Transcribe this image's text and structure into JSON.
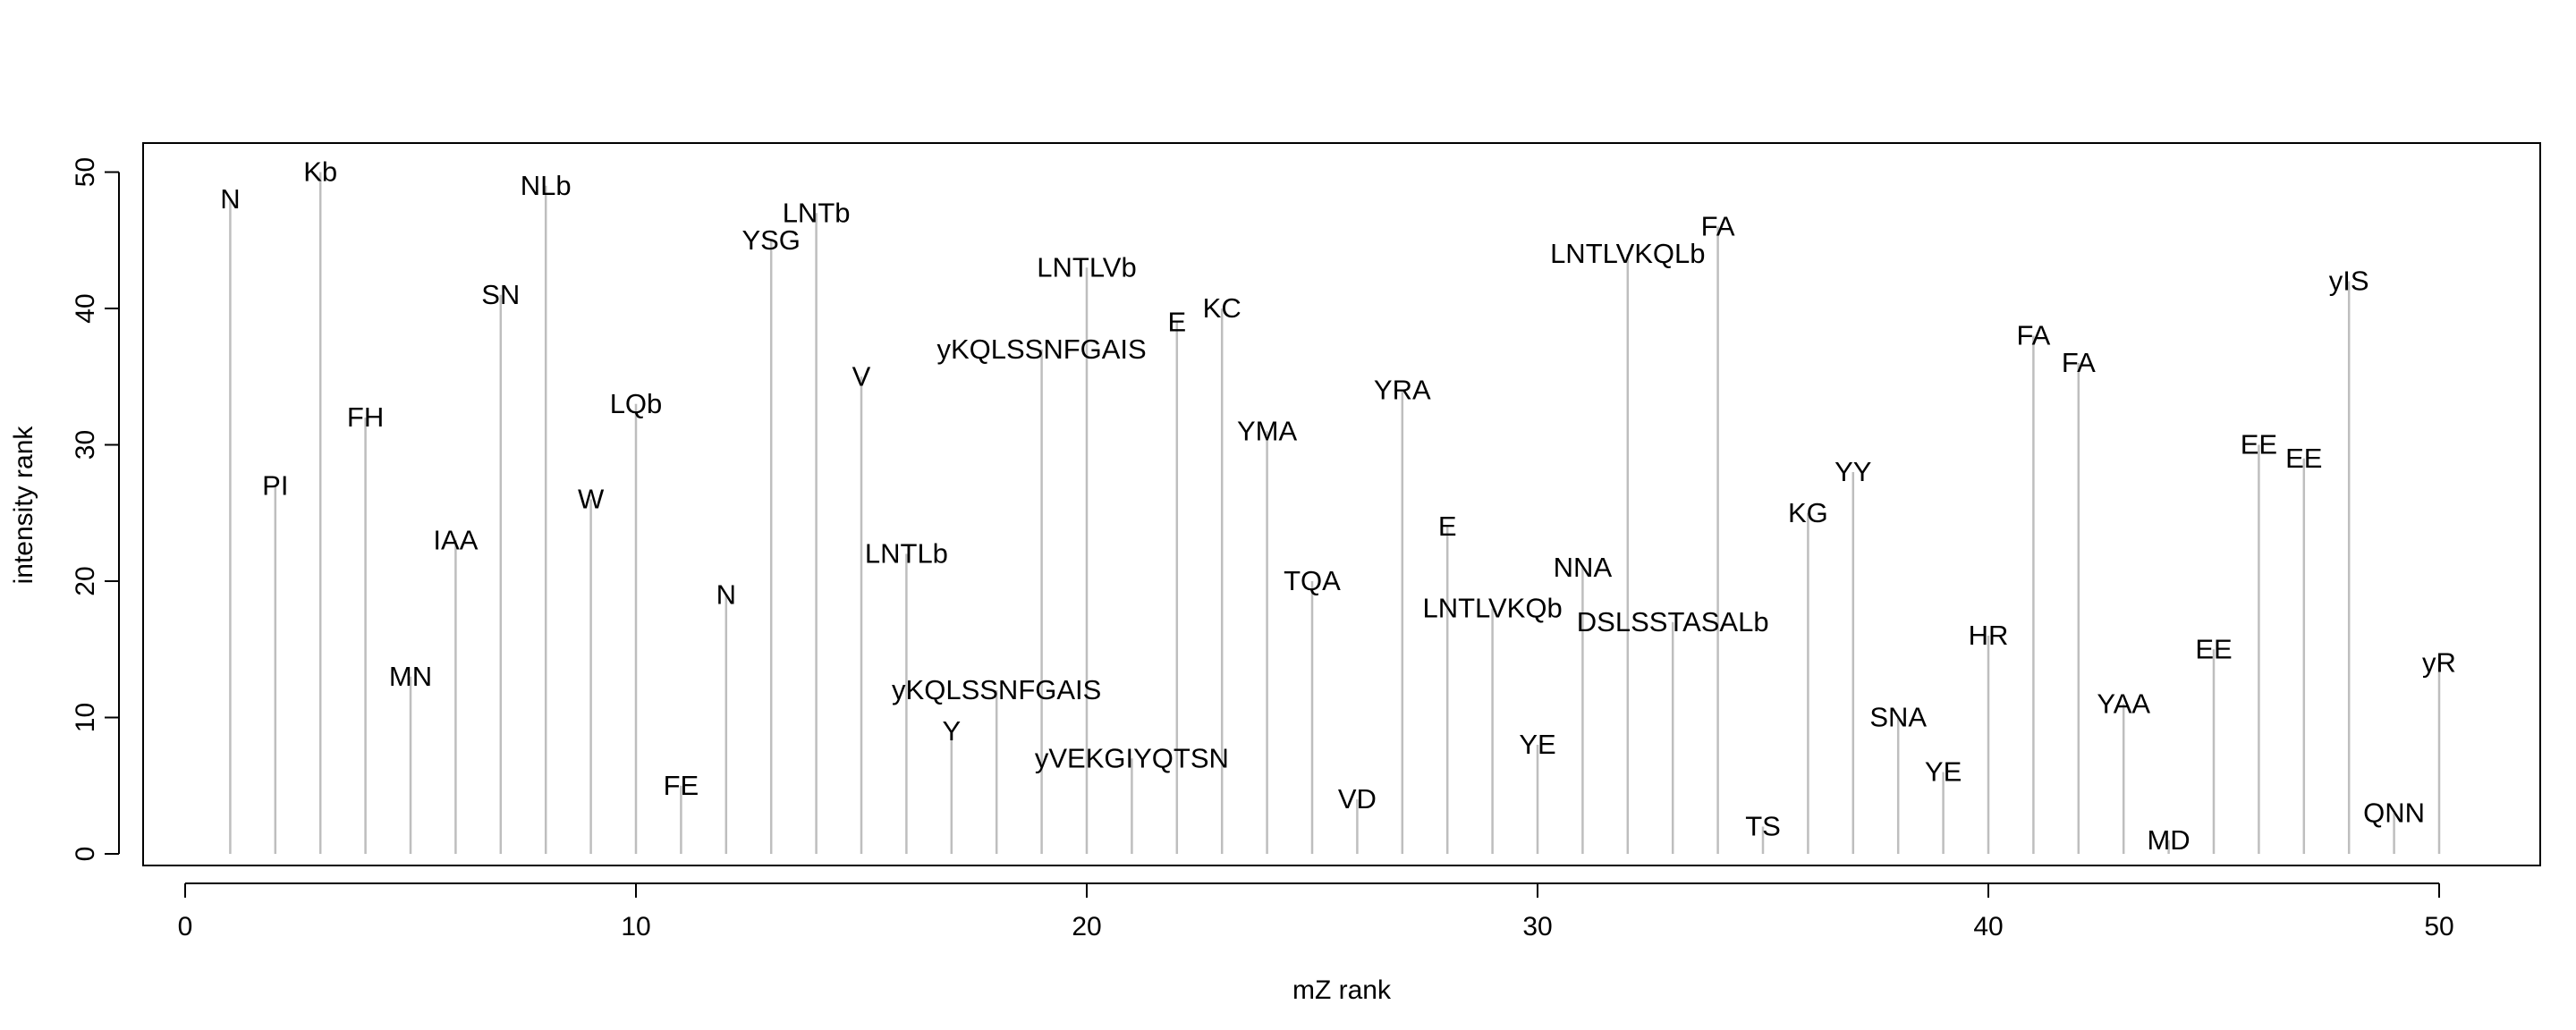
{
  "chart_data": {
    "type": "bar",
    "style": "vertical lines (spikes) with text labels",
    "xlabel": "mZ rank",
    "ylabel": "intensity rank",
    "xlim": [
      0,
      52
    ],
    "ylim": [
      0,
      50
    ],
    "xticks": [
      0,
      10,
      20,
      30,
      40,
      50
    ],
    "yticks": [
      0,
      10,
      20,
      30,
      40,
      50
    ],
    "grid": false,
    "spike_color": "#bebebe",
    "points": [
      {
        "x": 1,
        "y": 48,
        "label": "N"
      },
      {
        "x": 2,
        "y": 27,
        "label": "PI"
      },
      {
        "x": 3,
        "y": 50,
        "label": "Kb"
      },
      {
        "x": 4,
        "y": 32,
        "label": "FH"
      },
      {
        "x": 5,
        "y": 13,
        "label": "MN"
      },
      {
        "x": 6,
        "y": 23,
        "label": "IAA"
      },
      {
        "x": 7,
        "y": 41,
        "label": "SN"
      },
      {
        "x": 8,
        "y": 49,
        "label": "NLb"
      },
      {
        "x": 9,
        "y": 26,
        "label": "W"
      },
      {
        "x": 10,
        "y": 33,
        "label": "LQb"
      },
      {
        "x": 11,
        "y": 5,
        "label": "FE"
      },
      {
        "x": 12,
        "y": 19,
        "label": "N"
      },
      {
        "x": 13,
        "y": 45,
        "label": "YSG"
      },
      {
        "x": 14,
        "y": 47,
        "label": "LNTb"
      },
      {
        "x": 15,
        "y": 35,
        "label": "V"
      },
      {
        "x": 16,
        "y": 22,
        "label": "LNTLb"
      },
      {
        "x": 17,
        "y": 9,
        "label": "Y"
      },
      {
        "x": 18,
        "y": 12,
        "label": "yKQLSSNFGAIS"
      },
      {
        "x": 19,
        "y": 37,
        "label": "yKQLSSNFGAIS"
      },
      {
        "x": 20,
        "y": 43,
        "label": "LNTLVb"
      },
      {
        "x": 21,
        "y": 7,
        "label": "yVEKGIYQTSN"
      },
      {
        "x": 22,
        "y": 39,
        "label": "E"
      },
      {
        "x": 23,
        "y": 40,
        "label": "KC"
      },
      {
        "x": 24,
        "y": 31,
        "label": "YMA"
      },
      {
        "x": 25,
        "y": 20,
        "label": "TQA"
      },
      {
        "x": 26,
        "y": 4,
        "label": "VD"
      },
      {
        "x": 27,
        "y": 34,
        "label": "YRA"
      },
      {
        "x": 28,
        "y": 24,
        "label": "E"
      },
      {
        "x": 29,
        "y": 18,
        "label": "LNTLVKQb"
      },
      {
        "x": 30,
        "y": 8,
        "label": "YE"
      },
      {
        "x": 31,
        "y": 21,
        "label": "NNA"
      },
      {
        "x": 32,
        "y": 44,
        "label": "LNTLVKQLb"
      },
      {
        "x": 33,
        "y": 17,
        "label": "DSLSSTASALb"
      },
      {
        "x": 34,
        "y": 46,
        "label": "FA"
      },
      {
        "x": 35,
        "y": 2,
        "label": "TS"
      },
      {
        "x": 36,
        "y": 25,
        "label": "KG"
      },
      {
        "x": 37,
        "y": 28,
        "label": "YY"
      },
      {
        "x": 38,
        "y": 10,
        "label": "SNA"
      },
      {
        "x": 39,
        "y": 6,
        "label": "YE"
      },
      {
        "x": 40,
        "y": 16,
        "label": "HR"
      },
      {
        "x": 41,
        "y": 38,
        "label": "FA"
      },
      {
        "x": 42,
        "y": 36,
        "label": "FA"
      },
      {
        "x": 43,
        "y": 11,
        "label": "YAA"
      },
      {
        "x": 44,
        "y": 1,
        "label": "MD"
      },
      {
        "x": 45,
        "y": 15,
        "label": "EE"
      },
      {
        "x": 46,
        "y": 30,
        "label": "EE"
      },
      {
        "x": 47,
        "y": 29,
        "label": "EE"
      },
      {
        "x": 48,
        "y": 42,
        "label": "yIS"
      },
      {
        "x": 49,
        "y": 3,
        "label": "QNN"
      },
      {
        "x": 50,
        "y": 14,
        "label": "yR"
      }
    ]
  }
}
